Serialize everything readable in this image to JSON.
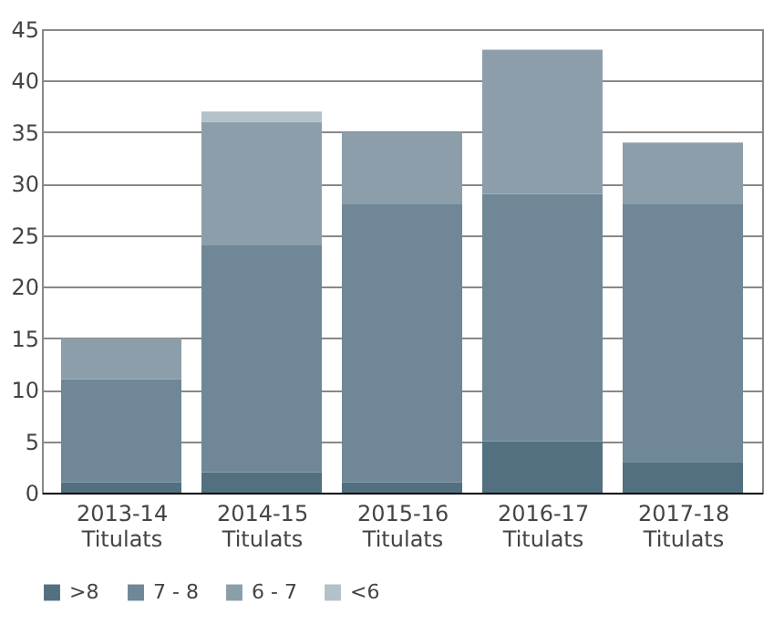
{
  "chart_data": {
    "type": "bar",
    "stacked": true,
    "categories": [
      "2013-14 Titulats",
      "2014-15 Titulats",
      "2015-16 Titulats",
      "2016-17 Titulats",
      "2017-18 Titulats"
    ],
    "series": [
      {
        "name": ">8",
        "color": "#52707f",
        "values": [
          1,
          2,
          1,
          5,
          3
        ]
      },
      {
        "name": "7 - 8",
        "color": "#6f8796",
        "values": [
          10,
          22,
          27,
          24,
          25
        ]
      },
      {
        "name": "6 - 7",
        "color": "#8c9ea9",
        "values": [
          4,
          12,
          7,
          14,
          6
        ]
      },
      {
        "name": "<6",
        "color": "#b3c1c8",
        "values": [
          0,
          1,
          0,
          0,
          0
        ]
      }
    ],
    "ylim": [
      0,
      45
    ],
    "yticks": [
      0,
      5,
      10,
      15,
      20,
      25,
      30,
      35,
      40,
      45
    ],
    "grid": "y",
    "legend": "bottom"
  }
}
